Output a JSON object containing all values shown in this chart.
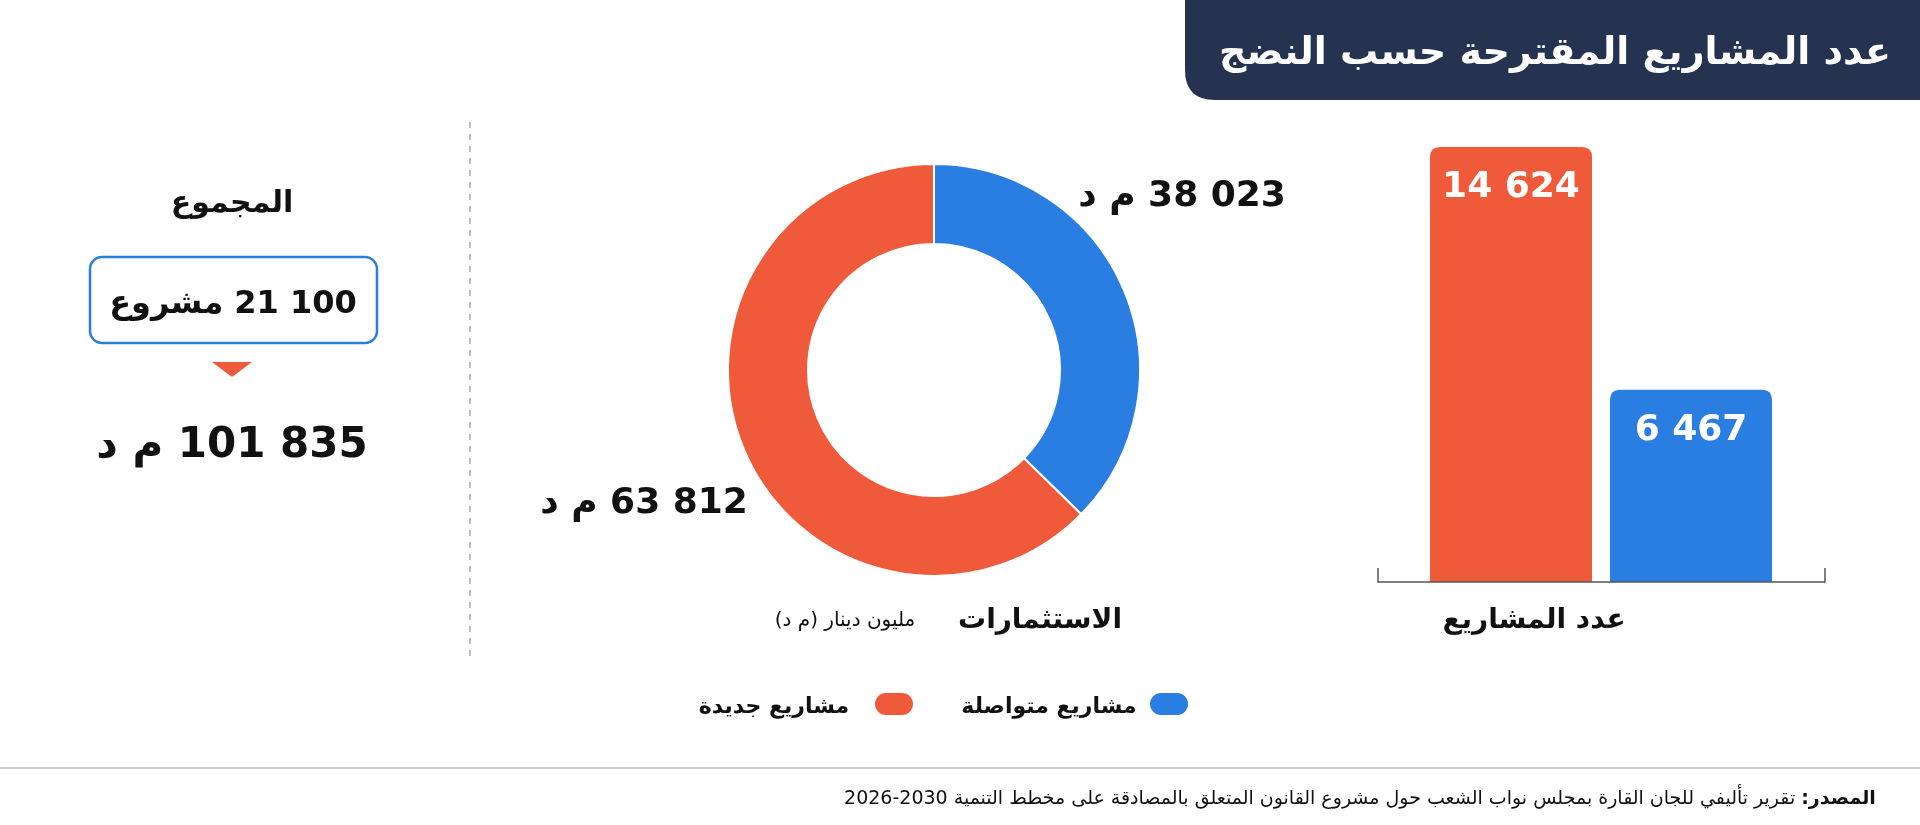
{
  "chart_data": [
    {
      "type": "bar",
      "title": "عدد المشاريع المقترحة حسب النضج",
      "xlabel": "عدد المشاريع",
      "categories": [
        null
      ],
      "series": [
        {
          "color": "#ee5a3a",
          "values": [
            14624
          ],
          "value_labels": [
            "14 624"
          ]
        },
        {
          "color": "#2a7de1",
          "values": [
            6467
          ],
          "value_labels": [
            "6 467"
          ]
        }
      ],
      "annotations": [
        "**المصدر:** تقرير تأليفي للجان القارة بمجلس نواب الشعب حول مشروع القانون المتعلق بالمصادقة على مخطط التنمية 2026-2030"
      ]
    },
    {
      "type": "donut",
      "xlabel": "الاستثمارات",
      "subtitle": "مليون دينار (م د)",
      "categories": [
        "مشاريع متواصلة",
        "مشاريع جديدة"
      ],
      "values": [
        38023,
        63812
      ],
      "colors": [
        "#2a7de1",
        "#ee5a3a"
      ],
      "value_labels": [
        "38 023 م د",
        "63 812 م د"
      ],
      "legend": "bottom"
    },
    {
      "type": "other",
      "title": "المجموع",
      "annotations": [
        "21 100 مشروع",
        "101 835 م د"
      ]
    }
  ]
}
